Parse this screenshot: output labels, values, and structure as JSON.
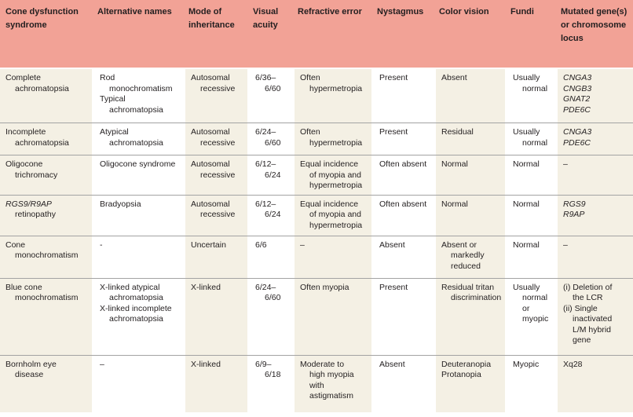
{
  "colors": {
    "header_bg": "#f2a296",
    "stripe_cream": "#f4f0e4",
    "stripe_white": "#ffffff",
    "row_line": "#a3a3a3",
    "text": "#231f20"
  },
  "table": {
    "headers": [
      "Cone dysfunction syndrome",
      "Alternative names",
      "Mode of inheritance",
      "Visual acuity",
      "Refractive error",
      "Nystagmus",
      "Color vision",
      "Fundi",
      "Mutated gene(s) or chromosome locus"
    ],
    "rows": [
      {
        "cells": [
          [
            {
              "t": "Complete"
            },
            {
              "t": "achromatopsia",
              "n": true
            }
          ],
          [
            {
              "t": "Rod"
            },
            {
              "t": "monochromatism",
              "n": true
            },
            {
              "t": "Typical"
            },
            {
              "t": "achromatopsia",
              "n": true
            }
          ],
          [
            {
              "t": "Autosomal"
            },
            {
              "t": "recessive",
              "n": true
            }
          ],
          [
            {
              "t": "6/36–"
            },
            {
              "t": "6/60",
              "n": true
            }
          ],
          [
            {
              "t": "Often"
            },
            {
              "t": "hypermetropia",
              "n": true
            }
          ],
          [
            {
              "t": "Present"
            }
          ],
          [
            {
              "t": "Absent"
            }
          ],
          [
            {
              "t": "Usually"
            },
            {
              "t": "normal",
              "n": true
            }
          ],
          [
            {
              "t": "CNGA3",
              "i": true
            },
            {
              "t": "CNGB3",
              "i": true
            },
            {
              "t": "GNAT2",
              "i": true
            },
            {
              "t": "PDE6C",
              "i": true
            }
          ]
        ]
      },
      {
        "cells": [
          [
            {
              "t": "Incomplete"
            },
            {
              "t": "achromatopsia",
              "n": true
            }
          ],
          [
            {
              "t": "Atypical"
            },
            {
              "t": "achromatopsia",
              "n": true
            }
          ],
          [
            {
              "t": "Autosomal"
            },
            {
              "t": "recessive",
              "n": true
            }
          ],
          [
            {
              "t": "6/24–"
            },
            {
              "t": "6/60",
              "n": true
            }
          ],
          [
            {
              "t": "Often"
            },
            {
              "t": "hypermetropia",
              "n": true
            }
          ],
          [
            {
              "t": "Present"
            }
          ],
          [
            {
              "t": "Residual"
            }
          ],
          [
            {
              "t": "Usually"
            },
            {
              "t": "normal",
              "n": true
            }
          ],
          [
            {
              "t": "CNGA3",
              "i": true
            },
            {
              "t": "PDE6C",
              "i": true
            }
          ]
        ]
      },
      {
        "cells": [
          [
            {
              "t": "Oligocone"
            },
            {
              "t": "trichromacy",
              "n": true
            }
          ],
          [
            {
              "t": "Oligocone syndrome"
            }
          ],
          [
            {
              "t": "Autosomal"
            },
            {
              "t": "recessive",
              "n": true
            }
          ],
          [
            {
              "t": "6/12–"
            },
            {
              "t": "6/24",
              "n": true
            }
          ],
          [
            {
              "t": "Equal incidence"
            },
            {
              "t": "of myopia and",
              "n": true
            },
            {
              "t": "hypermetropia",
              "n": true
            }
          ],
          [
            {
              "t": "Often absent"
            }
          ],
          [
            {
              "t": "Normal"
            }
          ],
          [
            {
              "t": "Normal"
            }
          ],
          [
            {
              "t": "–"
            }
          ]
        ]
      },
      {
        "cells": [
          [
            {
              "t": "RGS9/R9AP",
              "i": true
            },
            {
              "t": "retinopathy",
              "n": true
            }
          ],
          [
            {
              "t": "Bradyopsia"
            }
          ],
          [
            {
              "t": "Autosomal"
            },
            {
              "t": "recessive",
              "n": true
            }
          ],
          [
            {
              "t": "6/12–"
            },
            {
              "t": "6/24",
              "n": true
            }
          ],
          [
            {
              "t": "Equal incidence"
            },
            {
              "t": "of myopia and",
              "n": true
            },
            {
              "t": "hypermetropia",
              "n": true
            }
          ],
          [
            {
              "t": "Often absent"
            }
          ],
          [
            {
              "t": "Normal"
            }
          ],
          [
            {
              "t": "Normal"
            }
          ],
          [
            {
              "t": "RGS9",
              "i": true
            },
            {
              "t": "R9AP",
              "i": true
            }
          ]
        ]
      },
      {
        "cells": [
          [
            {
              "t": "Cone"
            },
            {
              "t": "monochromatism",
              "n": true
            }
          ],
          [
            {
              "t": "-"
            }
          ],
          [
            {
              "t": "Uncertain"
            }
          ],
          [
            {
              "t": "6/6"
            }
          ],
          [
            {
              "t": "–"
            }
          ],
          [
            {
              "t": "Absent"
            }
          ],
          [
            {
              "t": "Absent or"
            },
            {
              "t": "markedly",
              "n": true
            },
            {
              "t": "reduced",
              "n": true
            }
          ],
          [
            {
              "t": "Normal"
            }
          ],
          [
            {
              "t": "–"
            }
          ]
        ]
      },
      {
        "cells": [
          [
            {
              "t": "Blue cone"
            },
            {
              "t": "monochromatism",
              "n": true
            }
          ],
          [
            {
              "t": "X-linked atypical"
            },
            {
              "t": "achromatopsia",
              "n": true
            },
            {
              "t": "X-linked incomplete"
            },
            {
              "t": "achromatopsia",
              "n": true
            }
          ],
          [
            {
              "t": "X-linked"
            }
          ],
          [
            {
              "t": "6/24–"
            },
            {
              "t": "6/60",
              "n": true
            }
          ],
          [
            {
              "t": "Often myopia"
            }
          ],
          [
            {
              "t": "Present"
            }
          ],
          [
            {
              "t": "Residual tritan"
            },
            {
              "t": "discrimination",
              "n": true
            }
          ],
          [
            {
              "t": "Usually"
            },
            {
              "t": "normal",
              "n": true
            },
            {
              "t": "or",
              "n": true
            },
            {
              "t": "myopic",
              "n": true
            }
          ],
          [
            {
              "t": "(i) Deletion of"
            },
            {
              "t": "the LCR",
              "n": true
            },
            {
              "t": "(ii) Single"
            },
            {
              "t": "inactivated",
              "n": true
            },
            {
              "t": "L/M hybrid",
              "n": true
            },
            {
              "t": "gene",
              "n": true
            }
          ]
        ]
      },
      {
        "cells": [
          [
            {
              "t": "Bornholm eye"
            },
            {
              "t": "disease",
              "n": true
            }
          ],
          [
            {
              "t": "–"
            }
          ],
          [
            {
              "t": "X-linked"
            }
          ],
          [
            {
              "t": "6/9–"
            },
            {
              "t": "6/18",
              "n": true
            }
          ],
          [
            {
              "t": "Moderate to"
            },
            {
              "t": "high myopia",
              "n": true
            },
            {
              "t": "with",
              "n": true
            },
            {
              "t": "astigmatism",
              "n": true
            }
          ],
          [
            {
              "t": "Absent"
            }
          ],
          [
            {
              "t": "Deuteranopia"
            },
            {
              "t": "Protanopia"
            }
          ],
          [
            {
              "t": "Myopic"
            }
          ],
          [
            {
              "t": "Xq28"
            }
          ]
        ]
      }
    ]
  }
}
